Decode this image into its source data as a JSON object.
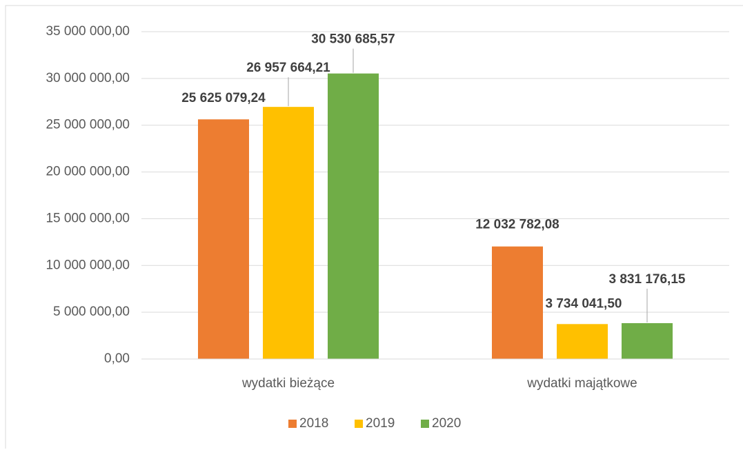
{
  "chart_data": {
    "type": "bar",
    "categories": [
      "wydatki bieżące",
      "wydatki majątkowe"
    ],
    "series": [
      {
        "name": "2018",
        "color": "#ED7D31",
        "values": [
          25625079.24,
          12032782.08
        ],
        "value_labels": [
          "25 625 079,24",
          "12 032 782,08"
        ]
      },
      {
        "name": "2019",
        "color": "#FFC000",
        "values": [
          26957664.21,
          3734041.5
        ],
        "value_labels": [
          "26 957 664,21",
          "3 734 041,50"
        ]
      },
      {
        "name": "2020",
        "color": "#70AD47",
        "values": [
          30530685.57,
          3831176.15
        ],
        "value_labels": [
          "30 530 685,57",
          "3 831 176,15"
        ]
      }
    ],
    "ylim": [
      0,
      35000000
    ],
    "yticks": [
      {
        "value": 0,
        "label": "0,00"
      },
      {
        "value": 5000000,
        "label": "5 000 000,00"
      },
      {
        "value": 10000000,
        "label": "10 000 000,00"
      },
      {
        "value": 15000000,
        "label": "15 000 000,00"
      },
      {
        "value": 20000000,
        "label": "20 000 000,00"
      },
      {
        "value": 25000000,
        "label": "25 000 000,00"
      },
      {
        "value": 30000000,
        "label": "30 000 000,00"
      },
      {
        "value": 35000000,
        "label": "35 000 000,00"
      }
    ],
    "grid": true,
    "legend": "bottom"
  }
}
